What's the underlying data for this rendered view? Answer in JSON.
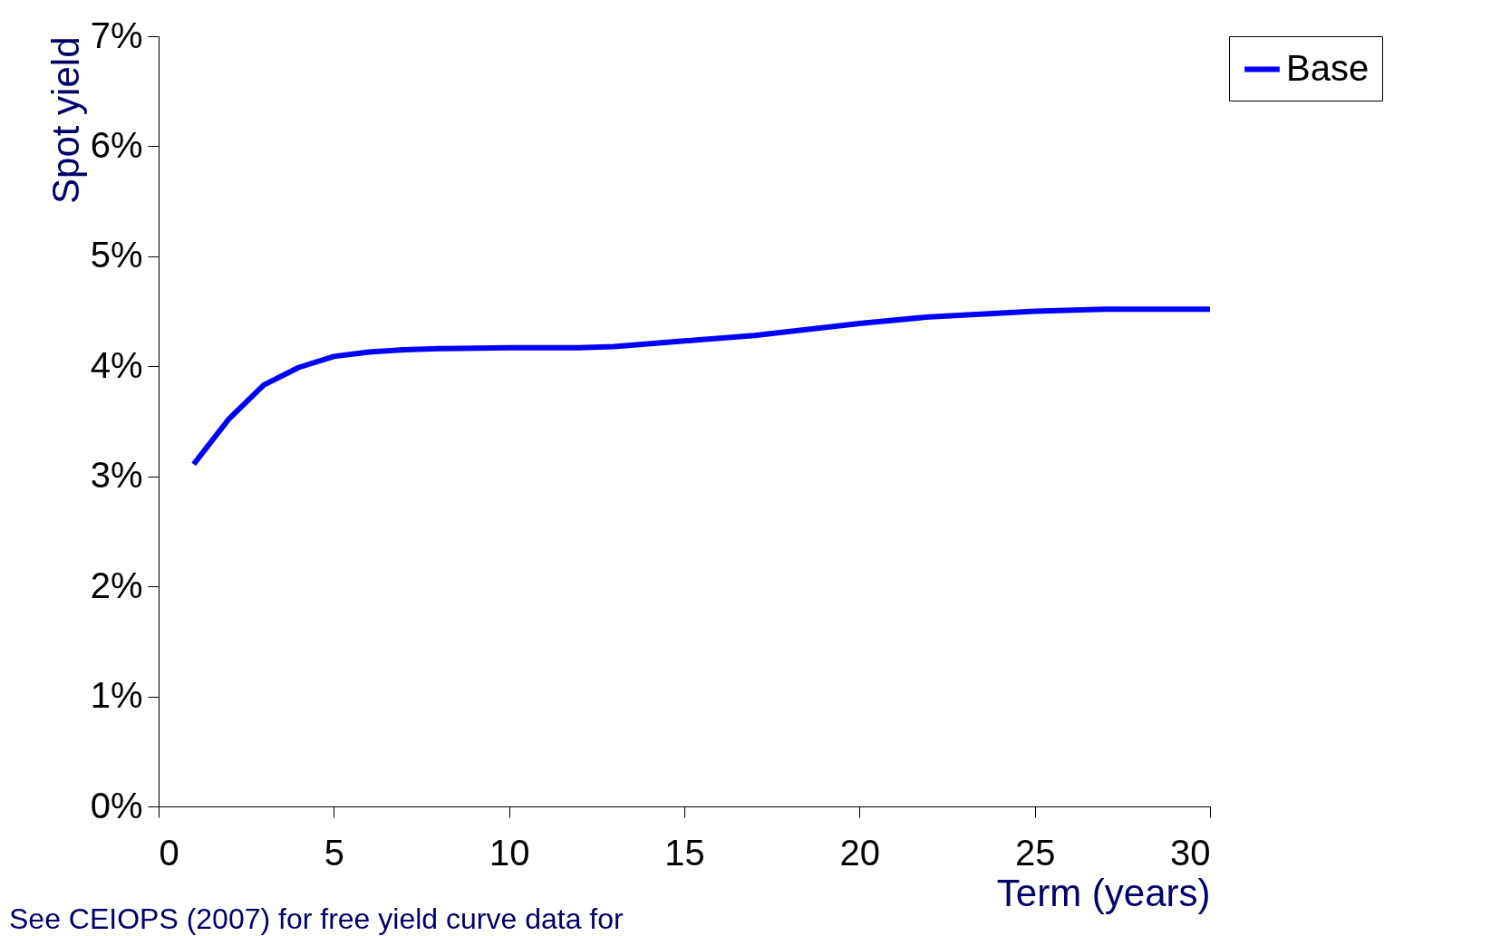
{
  "chart_data": {
    "type": "line",
    "xlabel": "Term (years)",
    "ylabel": "Spot yield",
    "annotations": [
      "See CEIOPS (2007) for free yield curve data for"
    ],
    "series": [
      {
        "name": "Base",
        "color": "#0000ff",
        "x": [
          1,
          2,
          3,
          4,
          5,
          6,
          7,
          8,
          10,
          12,
          13,
          15,
          17,
          20,
          22,
          25,
          27,
          30
        ],
        "values": [
          3.11,
          3.52,
          3.83,
          3.99,
          4.09,
          4.13,
          4.15,
          4.16,
          4.17,
          4.17,
          4.18,
          4.23,
          4.28,
          4.39,
          4.45,
          4.5,
          4.52,
          4.52
        ]
      }
    ],
    "xlim": [
      0,
      30
    ],
    "xticks": [
      0,
      5,
      10,
      15,
      20,
      25,
      30
    ],
    "ylim": [
      0,
      7
    ],
    "yticks": [
      {
        "value": 0,
        "label": "0%"
      },
      {
        "value": 1,
        "label": "1%"
      },
      {
        "value": 2,
        "label": "2%"
      },
      {
        "value": 3,
        "label": "3%"
      },
      {
        "value": 4,
        "label": "4%"
      },
      {
        "value": 5,
        "label": "5%"
      },
      {
        "value": 6,
        "label": "6%"
      },
      {
        "value": 7,
        "label": "7%"
      }
    ],
    "grid": false,
    "legend": "right",
    "marker": "none",
    "line_style": "solid"
  }
}
